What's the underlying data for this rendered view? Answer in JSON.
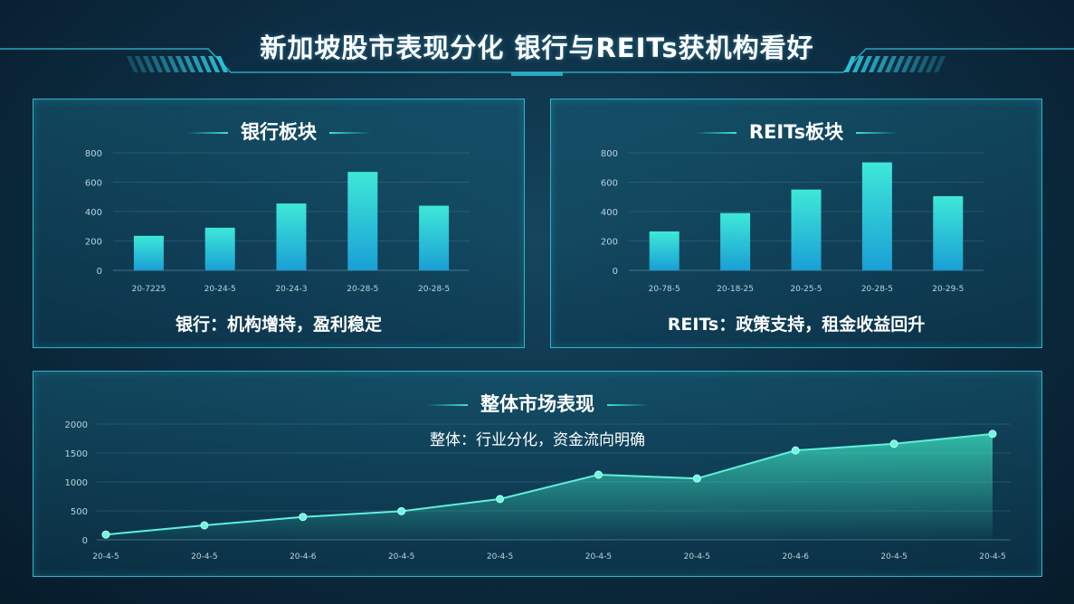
{
  "page": {
    "title": "新加坡股市表现分化 银行与REITs获机构看好"
  },
  "panels": {
    "bank": {
      "title": "银行板块",
      "caption": "银行：机构增持，盈利稳定"
    },
    "reits": {
      "title": "REITs板块",
      "caption": "REITs：政策支持，租金收益回升"
    },
    "overall": {
      "title": "整体市场表现",
      "subtitle": "整体：行业分化，资金流向明确"
    }
  },
  "colors": {
    "accent": "#3de2d6",
    "bar_top": "#3ee8d8",
    "bar_bottom": "#1a9fd6",
    "line": "#5ff0dc",
    "panel_border": "#2fb6c9"
  },
  "chart_data": [
    {
      "type": "bar",
      "title": "银行板块",
      "categories": [
        "20-7225",
        "20-24-5",
        "20-24-3",
        "20-28-5",
        "20-28-5"
      ],
      "values": [
        235,
        290,
        455,
        670,
        440
      ],
      "ylim": [
        0,
        800
      ],
      "yticks": [
        0,
        200,
        400,
        600,
        800
      ],
      "grid": true
    },
    {
      "type": "bar",
      "title": "REITs板块",
      "categories": [
        "20-78-5",
        "20-18-25",
        "20-25-5",
        "20-28-5",
        "20-29-5"
      ],
      "values": [
        265,
        390,
        550,
        735,
        505
      ],
      "ylim": [
        0,
        800
      ],
      "yticks": [
        0,
        200,
        400,
        600,
        800
      ],
      "grid": true
    },
    {
      "type": "area",
      "title": "整体市场表现",
      "categories": [
        "20-4-5",
        "20-4-5",
        "20-4-6",
        "20-4-5",
        "20-4-5",
        "20-4-5",
        "20-4-5",
        "20-4-6",
        "20-4-5",
        "20-4-5"
      ],
      "values": [
        90,
        250,
        395,
        495,
        705,
        1125,
        1060,
        1545,
        1660,
        1830
      ],
      "ylim": [
        0,
        2000
      ],
      "yticks": [
        0,
        500,
        1000,
        1500,
        2000
      ],
      "grid": true
    }
  ]
}
